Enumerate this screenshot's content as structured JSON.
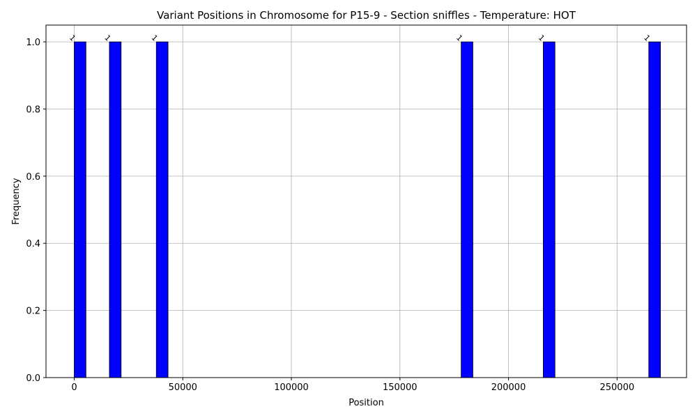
{
  "chart_data": {
    "type": "bar",
    "title": "Variant Positions in Chromosome for P15-9 - Section sniffles - Temperature: HOT",
    "xlabel": "Position",
    "ylabel": "Frequency",
    "xlim": [
      -13000,
      282000
    ],
    "ylim": [
      0,
      1.05
    ],
    "x_ticks": [
      0,
      50000,
      100000,
      150000,
      200000,
      250000
    ],
    "y_ticks": [
      0.0,
      0.2,
      0.4,
      0.6,
      0.8,
      1.0
    ],
    "x_tick_labels": [
      "0",
      "50000",
      "100000",
      "150000",
      "200000",
      "250000"
    ],
    "y_tick_labels": [
      "0.0",
      "0.2",
      "0.4",
      "0.6",
      "0.8",
      "1.0"
    ],
    "grid": true,
    "bin_width": 5400,
    "bars": [
      {
        "start": 0,
        "value": 1,
        "label": "1"
      },
      {
        "start": 16200,
        "value": 1,
        "label": "1"
      },
      {
        "start": 37800,
        "value": 1,
        "label": "1"
      },
      {
        "start": 178200,
        "value": 1,
        "label": "1"
      },
      {
        "start": 216000,
        "value": 1,
        "label": "1"
      },
      {
        "start": 264600,
        "value": 1,
        "label": "1"
      }
    ],
    "bar_color": "#0000ff",
    "bar_edge_color": "#000000"
  }
}
